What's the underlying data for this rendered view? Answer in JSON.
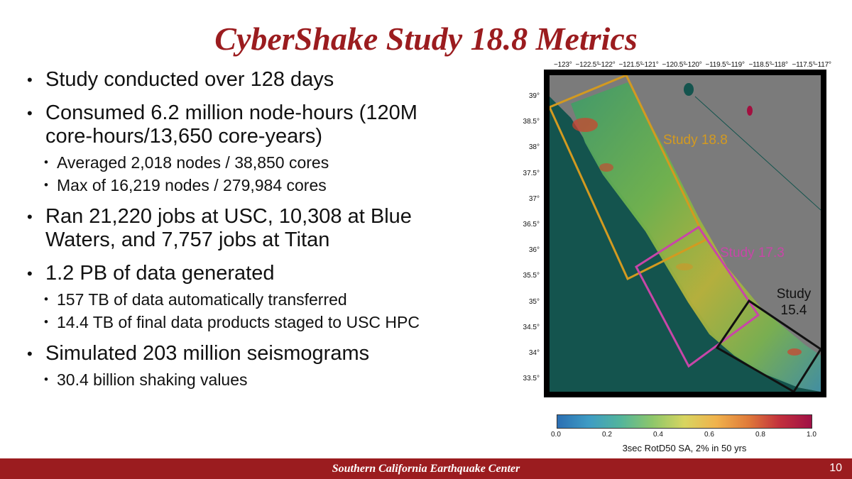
{
  "title": "CyberShake Study 18.8 Metrics",
  "bullets": [
    {
      "text": "Study conducted over 128 days",
      "sub": []
    },
    {
      "text": "Consumed 6.2 million node-hours (120M core-hours/13,650 core-years)",
      "sub": [
        "Averaged 2,018 nodes / 38,850 cores",
        "Max of 16,219 nodes / 279,984 cores"
      ]
    },
    {
      "text": "Ran 21,220 jobs at USC, 10,308 at Blue Waters, and 7,757 jobs at Titan",
      "sub": []
    },
    {
      "text": "1.2 PB of data generated",
      "sub": [
        "157 TB of data automatically transferred",
        "14.4 TB of final data products staged to USC HPC"
      ]
    },
    {
      "text": "Simulated 203 million seismograms",
      "sub": [
        "30.4 billion shaking values"
      ]
    }
  ],
  "map": {
    "lon_ticks": [
      "−123°",
      "−122.5°",
      "−122°",
      "−121.5°",
      "−121°",
      "−120.5°",
      "−120°",
      "−119.5°",
      "−119°",
      "−118.5°",
      "−118°",
      "−117.5°",
      "−117°"
    ],
    "lat_ticks": [
      "39°",
      "38.5°",
      "38°",
      "37.5°",
      "37°",
      "36.5°",
      "36°",
      "35.5°",
      "35°",
      "34.5°",
      "34°",
      "33.5°"
    ],
    "regions": [
      {
        "label": "Study 18.8",
        "color": "#d39a20"
      },
      {
        "label": "Study 17.3",
        "color": "#c846a8"
      },
      {
        "label": "Study 15.4",
        "color": "#111111"
      }
    ],
    "colorbar": {
      "ticks": [
        "0.0",
        "0.2",
        "0.4",
        "0.6",
        "0.8",
        "1.0"
      ],
      "label": "3sec RotD50 SA, 2% in 50 yrs"
    }
  },
  "footer": {
    "text": "Southern California Earthquake Center",
    "page": "10"
  }
}
